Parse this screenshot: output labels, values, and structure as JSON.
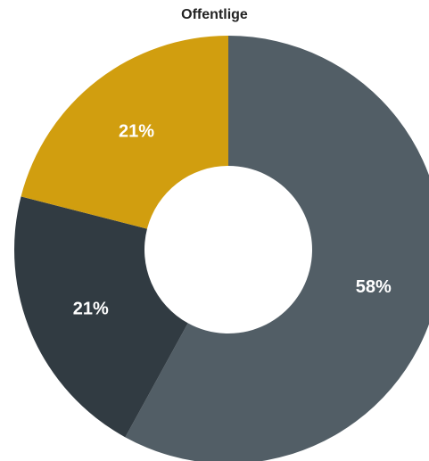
{
  "chart_data": {
    "type": "pie",
    "donut": true,
    "title": "Offentlige",
    "slices": [
      {
        "value": 58,
        "label": "58%",
        "color": "#525e66"
      },
      {
        "value": 21,
        "label": "21%",
        "color": "#313b42"
      },
      {
        "value": 21,
        "label": "21%",
        "color": "#d19e0f"
      }
    ],
    "start": "12 o'clock",
    "direction": "clockwise",
    "legend": "none"
  }
}
